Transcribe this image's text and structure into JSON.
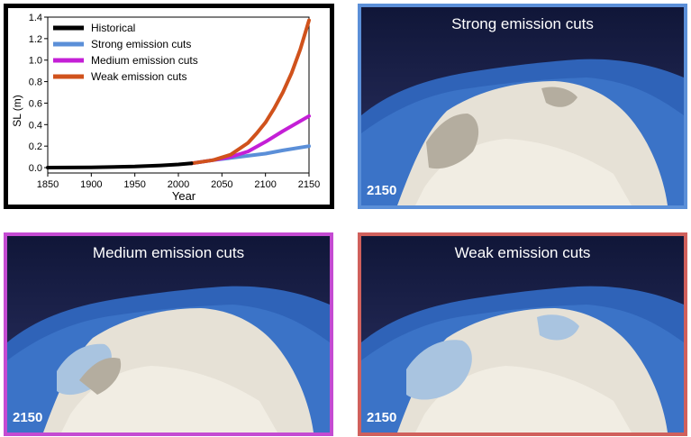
{
  "chart_data": {
    "type": "line",
    "title": "",
    "xlabel": "Year",
    "ylabel": "SL (m)",
    "xlim": [
      1850,
      2150
    ],
    "ylim": [
      -0.05,
      1.4
    ],
    "x_ticks": [
      "1850",
      "1900",
      "1950",
      "2000",
      "2050",
      "2100",
      "2150"
    ],
    "y_ticks": [
      "0.0",
      "0.2",
      "0.4",
      "0.6",
      "0.8",
      "1.0",
      "1.2",
      "1.4"
    ],
    "grid": false,
    "legend_position": "top-left",
    "series": [
      {
        "name": "Historical",
        "color": "#000000",
        "x": [
          1850,
          1900,
          1950,
          1980,
          2000,
          2015
        ],
        "y": [
          0.0,
          0.003,
          0.01,
          0.02,
          0.03,
          0.04
        ]
      },
      {
        "name": "Strong emission cuts",
        "color": "#5b8fd8",
        "x": [
          2015,
          2040,
          2060,
          2080,
          2100,
          2120,
          2150
        ],
        "y": [
          0.04,
          0.07,
          0.09,
          0.11,
          0.13,
          0.16,
          0.2
        ]
      },
      {
        "name": "Medium emission cuts",
        "color": "#c41fd6",
        "x": [
          2015,
          2040,
          2060,
          2080,
          2100,
          2120,
          2150
        ],
        "y": [
          0.04,
          0.07,
          0.1,
          0.15,
          0.24,
          0.34,
          0.48
        ]
      },
      {
        "name": "Weak emission cuts",
        "color": "#d0521c",
        "x": [
          2015,
          2040,
          2060,
          2080,
          2090,
          2100,
          2110,
          2120,
          2130,
          2140,
          2150
        ],
        "y": [
          0.04,
          0.07,
          0.12,
          0.23,
          0.32,
          0.42,
          0.55,
          0.7,
          0.88,
          1.1,
          1.37
        ]
      }
    ]
  },
  "panels": [
    {
      "title": "Strong emission cuts",
      "year": "2150",
      "border": "#5b8fd8"
    },
    {
      "title": "Medium emission cuts",
      "year": "2150",
      "border": "#c44bd2"
    },
    {
      "title": "Weak emission cuts",
      "year": "2150",
      "border": "#d0605c"
    }
  ]
}
